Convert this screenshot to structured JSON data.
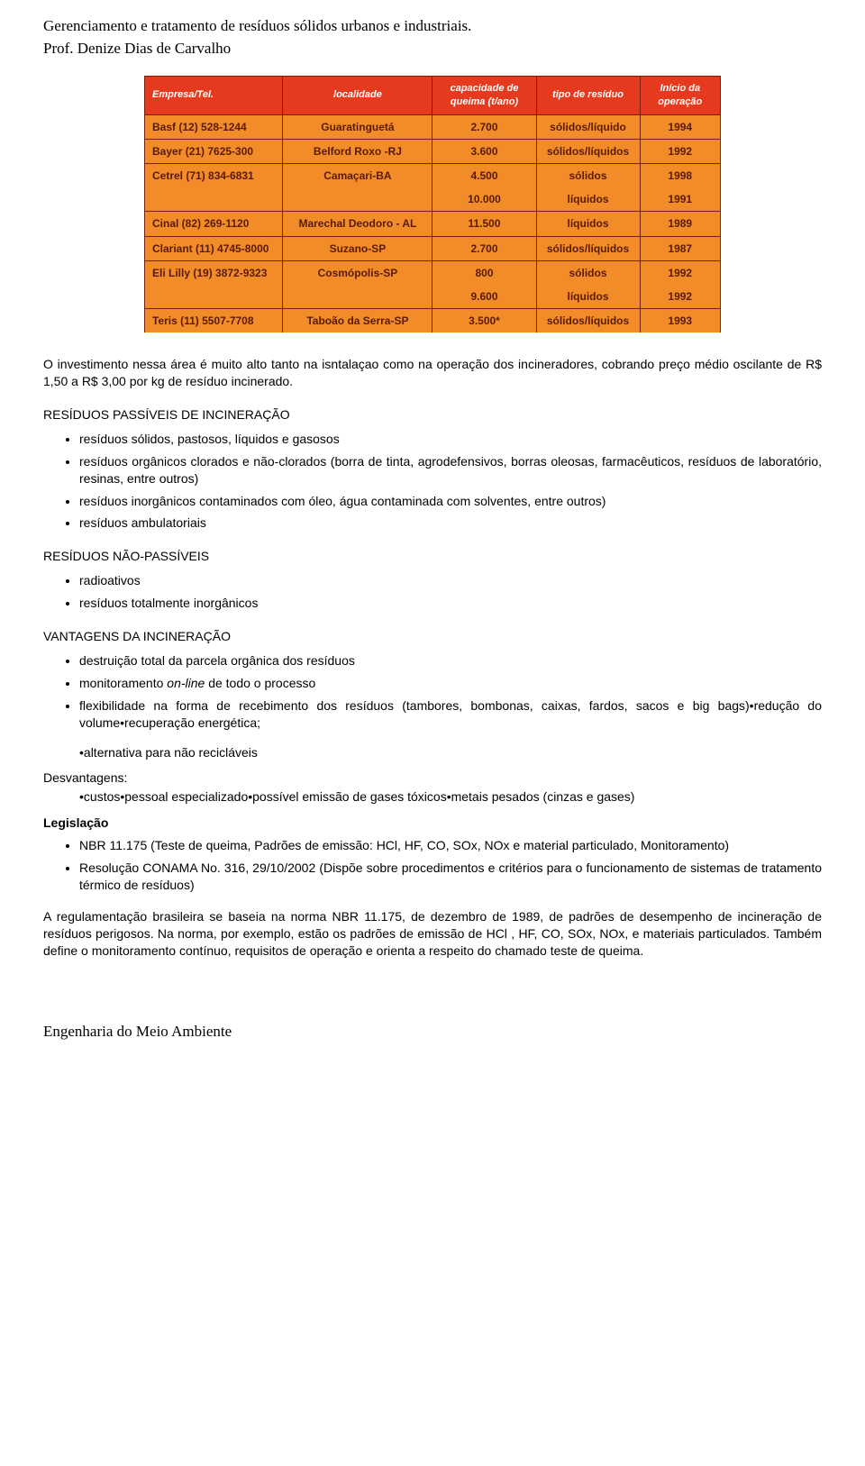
{
  "header": {
    "title": "Gerenciamento e tratamento de resíduos sólidos urbanos e industriais.",
    "subtitle": "Prof. Denize Dias de Carvalho"
  },
  "table": {
    "columns": [
      {
        "label": "Empresa/Tel.",
        "width": "24%"
      },
      {
        "label": "localidade",
        "width": "26%"
      },
      {
        "label": "capacidade de queima (t/ano)",
        "width": "18%"
      },
      {
        "label": "tipo de resíduo",
        "width": "18%"
      },
      {
        "label": "Início da operação",
        "width": "14%"
      }
    ],
    "rows": [
      {
        "cells": [
          "Basf (12) 528-1244",
          "Guaratinguetá",
          "2.700",
          "sólidos/líquido",
          "1994"
        ]
      },
      {
        "cells": [
          "Bayer (21) 7625-300",
          "Belford Roxo -RJ",
          "3.600",
          "sólidos/líquidos",
          "1992"
        ]
      },
      {
        "cells": [
          "Cetrel (71) 834-6831",
          "Camaçari-BA",
          "4.500",
          "sólidos",
          "1998"
        ]
      },
      {
        "cells": [
          "",
          "",
          "10.000",
          "líquidos",
          "1991"
        ],
        "subrow": true
      },
      {
        "cells": [
          "Cinal (82) 269-1120",
          "Marechal Deodoro - AL",
          "11.500",
          "líquidos",
          "1989"
        ]
      },
      {
        "cells": [
          "Clariant (11) 4745-8000",
          "Suzano-SP",
          "2.700",
          "sólidos/líquidos",
          "1987"
        ]
      },
      {
        "cells": [
          "Eli Lilly (19) 3872-9323",
          "Cosmópolis-SP",
          "800",
          "sólidos",
          "1992"
        ]
      },
      {
        "cells": [
          "",
          "",
          "9.600",
          "líquidos",
          "1992"
        ],
        "subrow": true
      },
      {
        "cells": [
          "Teris (11) 5507-7708",
          "Taboão da Serra-SP",
          "3.500*",
          "sólidos/líquidos",
          "1993"
        ]
      }
    ]
  },
  "intro_para": "O investimento nessa área é muito alto tanto na isntalaçao como na operação dos incineradores, cobrando preço médio oscilante de R$ 1,50 a R$ 3,00 por kg de resíduo incinerado.",
  "sections": {
    "passiveis": {
      "title": "RESÍDUOS PASSÍVEIS DE INCINERAÇÃO",
      "items": [
        "resíduos sólidos, pastosos, líquidos e gasosos",
        "resíduos orgânicos clorados e não-clorados (borra de tinta, agrodefensivos, borras oleosas, farmacêuticos, resíduos de laboratório, resinas, entre outros)",
        "resíduos inorgânicos contaminados com óleo, água contaminada com solventes, entre outros)",
        "resíduos ambulatoriais"
      ]
    },
    "nao_passiveis": {
      "title": "RESÍDUOS NÃO-PASSÍVEIS",
      "items": [
        "radioativos",
        "resíduos totalmente inorgânicos"
      ]
    },
    "vantagens": {
      "title": "VANTAGENS DA INCINERAÇÃO",
      "items": [
        "destruição total da parcela orgânica dos resíduos",
        "monitoramento <i>on-line</i> de todo o processo",
        "flexibilidade na forma de recebimento dos resíduos (tambores, bombonas, caixas, fardos, sacos e big bags)•redução do volume•recuperação energética;"
      ],
      "extra_line": "•alternativa para não recicláveis"
    },
    "desvantagens": {
      "title": "Desvantagens:",
      "line": "•custos•pessoal especializado•possível emissão de gases tóxicos•metais pesados (cinzas e gases)"
    },
    "legislacao": {
      "title": "Legislação",
      "items": [
        "NBR 11.175 (Teste de queima, Padrões de emissão: HCl, HF, CO, SOx, NOx e material particulado, Monitoramento)",
        "Resolução CONAMA No. 316, 29/10/2002 (Dispõe sobre procedimentos e critérios para o funcionamento de sistemas de tratamento térmico de resíduos)"
      ]
    }
  },
  "final_para": "A regulamentação brasileira se baseia na norma NBR 11.175, de dezembro de 1989, de padrões de desempenho de incineração de resíduos perigosos. Na norma, por exemplo, estão os padrões de emissão de HCl , HF, CO, SOx, NOx, e materiais particulados. Também define o monitoramento contínuo, requisitos de operação e orienta a respeito do chamado teste de queima.",
  "footer": "Engenharia do Meio Ambiente"
}
